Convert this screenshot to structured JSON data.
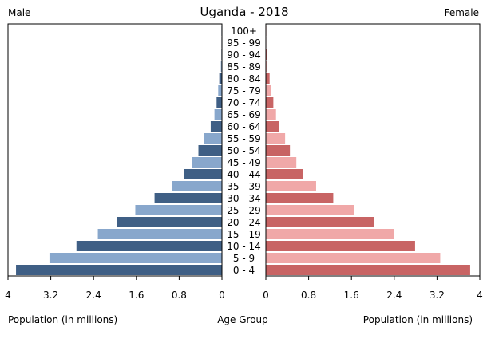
{
  "chart_data": {
    "type": "bar",
    "title": "Uganda - 2018",
    "left_label": "Male",
    "right_label": "Female",
    "xlabel_left": "Population (in millions)",
    "xlabel_center": "Age Group",
    "xlabel_right": "Population (in millions)",
    "categories": [
      "0 - 4",
      "5 - 9",
      "10 - 14",
      "15 - 19",
      "20 - 24",
      "25 - 29",
      "30 - 34",
      "35 - 39",
      "40 - 44",
      "45 - 49",
      "50 - 54",
      "55 - 59",
      "60 - 64",
      "65 - 69",
      "70 - 74",
      "75 - 79",
      "80 - 84",
      "85 - 89",
      "90 - 94",
      "95 - 99",
      "100+"
    ],
    "xlim": [
      0,
      4
    ],
    "xticks": [
      "4",
      "3.2",
      "2.4",
      "1.6",
      "0.8",
      "0"
    ],
    "xticks_right": [
      "0",
      "0.8",
      "1.6",
      "2.4",
      "3.2",
      "4"
    ],
    "series": [
      {
        "name": "Male",
        "side": "left",
        "colors": [
          "#3f5f85",
          "#88a7cc"
        ],
        "values": [
          3.85,
          3.21,
          2.72,
          2.32,
          1.96,
          1.62,
          1.26,
          0.93,
          0.71,
          0.56,
          0.44,
          0.33,
          0.21,
          0.14,
          0.1,
          0.07,
          0.05,
          0.02,
          0.01,
          0.005,
          0.002
        ]
      },
      {
        "name": "Female",
        "side": "right",
        "colors": [
          "#c86464",
          "#f0a8a8"
        ],
        "values": [
          3.82,
          3.26,
          2.79,
          2.39,
          2.02,
          1.65,
          1.26,
          0.94,
          0.7,
          0.57,
          0.45,
          0.36,
          0.24,
          0.19,
          0.14,
          0.1,
          0.07,
          0.03,
          0.015,
          0.006,
          0.003
        ]
      }
    ],
    "grid": false
  }
}
